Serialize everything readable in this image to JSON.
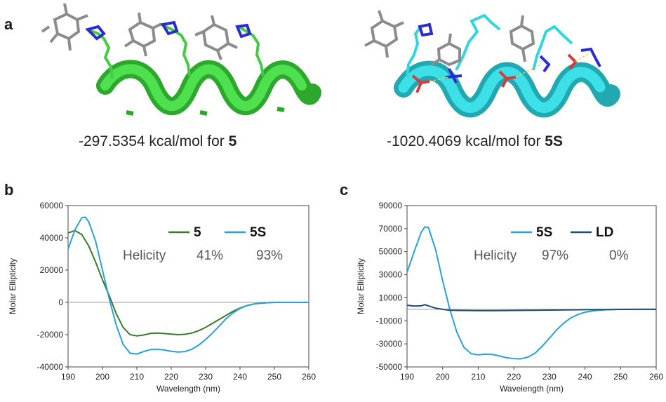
{
  "panel_a": {
    "letter": "a",
    "left_caption_prefix": "-297.5354 kcal/mol for ",
    "left_caption_bold": "5",
    "right_caption_prefix": "-1020.4069 kcal/mol for ",
    "right_caption_bold": "5S",
    "colors": {
      "left_helix": "#3ed03e",
      "right_helix": "#33d6dd",
      "sugar": "#8c8c8c",
      "nitrogen": "#2b2bd0",
      "oxygen": "#d63a3a"
    }
  },
  "panel_b": {
    "letter": "b"
  },
  "panel_c": {
    "letter": "c"
  },
  "chart_data": [
    {
      "type": "line",
      "xlabel": "Wavelength (nm)",
      "ylabel": "Molar Ellipticity",
      "xlim": [
        190,
        260
      ],
      "ylim": [
        -40000,
        60000
      ],
      "x_ticks": [
        "190",
        "200",
        "210",
        "220",
        "230",
        "240",
        "250",
        "260"
      ],
      "y_ticks": [
        "-40000",
        "-20000",
        "0",
        "20000",
        "40000",
        "60000"
      ],
      "legend_placement": "top-right",
      "helicity_label": "Helicity",
      "series": [
        {
          "name": "5",
          "color": "#3a7a2a",
          "helicity": "41%",
          "x": [
            190,
            192,
            194,
            196,
            198,
            200,
            202,
            204,
            206,
            208,
            210,
            212,
            214,
            216,
            218,
            220,
            222,
            224,
            226,
            228,
            230,
            232,
            234,
            236,
            238,
            240,
            242,
            244,
            246,
            248,
            250,
            255,
            260
          ],
          "y": [
            43000,
            44500,
            42000,
            35000,
            25000,
            14000,
            4000,
            -7000,
            -15500,
            -20000,
            -20800,
            -20200,
            -19200,
            -19000,
            -19300,
            -19700,
            -20000,
            -19800,
            -19000,
            -17500,
            -15500,
            -13000,
            -10500,
            -8000,
            -5500,
            -3500,
            -2000,
            -1000,
            -500,
            -200,
            0,
            0,
            0
          ]
        },
        {
          "name": "5S",
          "color": "#2aa0d8",
          "helicity": "93%",
          "x": [
            190,
            192,
            194,
            195,
            196,
            198,
            200,
            202,
            204,
            206,
            208,
            210,
            212,
            214,
            216,
            218,
            220,
            222,
            224,
            226,
            228,
            230,
            232,
            234,
            236,
            238,
            240,
            242,
            244,
            246,
            248,
            250,
            255,
            260
          ],
          "y": [
            33000,
            45000,
            52500,
            52800,
            50000,
            38000,
            20000,
            2000,
            -14000,
            -26000,
            -31500,
            -32000,
            -30500,
            -29200,
            -29000,
            -29500,
            -30300,
            -30800,
            -30500,
            -29000,
            -26500,
            -23000,
            -19000,
            -14500,
            -10000,
            -6500,
            -3800,
            -2000,
            -1000,
            -500,
            -200,
            0,
            0,
            0
          ]
        }
      ]
    },
    {
      "type": "line",
      "xlabel": "Wavelength (nm)",
      "ylabel": "Molar Ellipticity",
      "xlim": [
        190,
        260
      ],
      "ylim": [
        -50000,
        90000
      ],
      "x_ticks": [
        "190",
        "200",
        "210",
        "220",
        "230",
        "240",
        "250",
        "260"
      ],
      "y_ticks": [
        "-50000",
        "-30000",
        "-10000",
        "10000",
        "30000",
        "50000",
        "70000",
        "90000"
      ],
      "legend_placement": "top-right",
      "helicity_label": "Helicity",
      "series": [
        {
          "name": "5S",
          "color": "#2aa0d8",
          "helicity": "97%",
          "x": [
            190,
            192,
            194,
            195,
            196,
            198,
            200,
            202,
            204,
            206,
            208,
            210,
            212,
            214,
            216,
            218,
            220,
            222,
            224,
            226,
            228,
            230,
            232,
            234,
            236,
            238,
            240,
            242,
            244,
            246,
            248,
            250,
            255,
            260
          ],
          "y": [
            32000,
            50000,
            67000,
            71500,
            71000,
            52000,
            25000,
            0,
            -20000,
            -33000,
            -38500,
            -39500,
            -39000,
            -39200,
            -40500,
            -42000,
            -42800,
            -43000,
            -41500,
            -38000,
            -32000,
            -25000,
            -18000,
            -12000,
            -7500,
            -4500,
            -2500,
            -1500,
            -800,
            -400,
            -200,
            0,
            0,
            0
          ]
        },
        {
          "name": "LD",
          "color": "#1f4e6e",
          "helicity": "0%",
          "x": [
            190,
            192,
            194,
            195,
            196,
            198,
            200,
            202,
            205,
            210,
            215,
            220,
            225,
            230,
            235,
            240,
            245,
            250,
            255,
            260
          ],
          "y": [
            3500,
            2800,
            3000,
            4000,
            3000,
            1000,
            0,
            -800,
            -1000,
            -1200,
            -1100,
            -1000,
            -900,
            -700,
            -500,
            -300,
            -200,
            -100,
            0,
            0
          ]
        }
      ]
    }
  ]
}
